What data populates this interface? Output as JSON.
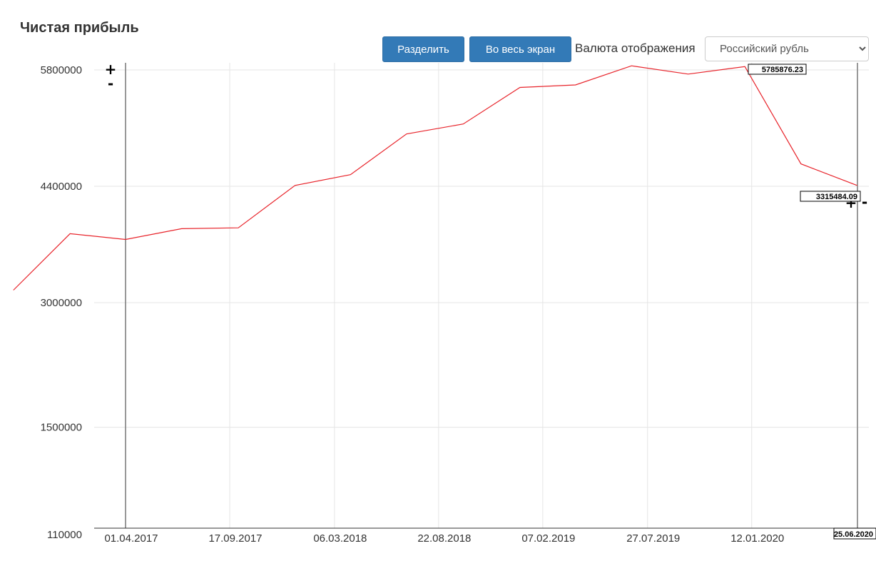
{
  "header": {
    "title": "Чистая прибыль",
    "split_label": "Разделить",
    "fullscreen_label": "Во весь экран",
    "currency_label": "Валюта отображения",
    "currency_selected": "Российский рубль"
  },
  "colors": {
    "line": "#e8242b",
    "button": "#337ab7",
    "grid": "#e5e5e5"
  },
  "chart_data": {
    "type": "line",
    "title": "Чистая прибыль",
    "x_tick_labels": [
      "01.04.2017",
      "17.09.2017",
      "06.03.2018",
      "22.08.2018",
      "07.02.2019",
      "27.07.2019",
      "12.01.2020"
    ],
    "y_tick_labels": [
      "5800000",
      "4400000",
      "3000000",
      "1500000",
      "110000"
    ],
    "y_tick_values": [
      5800000,
      4400000,
      3000000,
      1500000,
      110000
    ],
    "ylim": [
      110000,
      5800000
    ],
    "grid": true,
    "series": [
      {
        "color": "#e8242b",
        "x": [
          "2016-10-01",
          "2017-01-01",
          "2017-04-01",
          "2017-07-01",
          "2017-10-01",
          "2018-01-01",
          "2018-04-01",
          "2018-07-01",
          "2018-10-01",
          "2019-01-01",
          "2019-04-01",
          "2019-07-01",
          "2019-10-01",
          "2020-01-01",
          "2020-04-01",
          "2020-07-01"
        ],
        "values": [
          3150000,
          3830000,
          3760000,
          3890000,
          3900000,
          4410000,
          4540000,
          5030000,
          5150000,
          5590000,
          5620000,
          5850000,
          5750000,
          5840000,
          4670000,
          4410000
        ]
      }
    ],
    "max_flag_label": "5785876.23",
    "right_flag_label": "3315484.09",
    "end_date_label": "25.06.2020",
    "zoom_plus": "+",
    "zoom_minus": "-"
  }
}
